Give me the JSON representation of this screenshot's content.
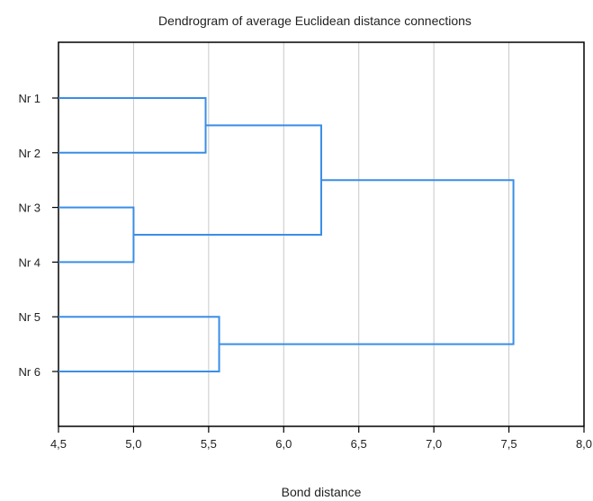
{
  "chart_data": {
    "type": "dendrogram",
    "title": "Dendrogram of average Euclidean distance connections",
    "xlabel": "Bond distance",
    "ylabel": "",
    "xlim": [
      4.5,
      8.0
    ],
    "x_ticks": [
      {
        "value": 4.5,
        "label": "4,5"
      },
      {
        "value": 5.0,
        "label": "5,0"
      },
      {
        "value": 5.5,
        "label": "5,5"
      },
      {
        "value": 6.0,
        "label": "6,0"
      },
      {
        "value": 6.5,
        "label": "6,5"
      },
      {
        "value": 7.0,
        "label": "7,0"
      },
      {
        "value": 7.5,
        "label": "7,5"
      },
      {
        "value": 8.0,
        "label": "8,0"
      }
    ],
    "grid": true,
    "leaves": [
      "Nr 1",
      "Nr 2",
      "Nr 3",
      "Nr 4",
      "Nr 5",
      "Nr 6"
    ],
    "merges": [
      {
        "id": "c1",
        "left": "Nr 1",
        "right": "Nr 2",
        "distance": 5.48
      },
      {
        "id": "c2",
        "left": "Nr 3",
        "right": "Nr 4",
        "distance": 5.0
      },
      {
        "id": "c3",
        "left": "Nr 5",
        "right": "Nr 6",
        "distance": 5.57
      },
      {
        "id": "c4",
        "left": "c1",
        "right": "c2",
        "distance": 6.25
      },
      {
        "id": "c5",
        "left": "c4",
        "right": "c3",
        "distance": 7.53
      }
    ],
    "line_color": "#3a8ee6",
    "grid_color": "#c8c8c8"
  }
}
